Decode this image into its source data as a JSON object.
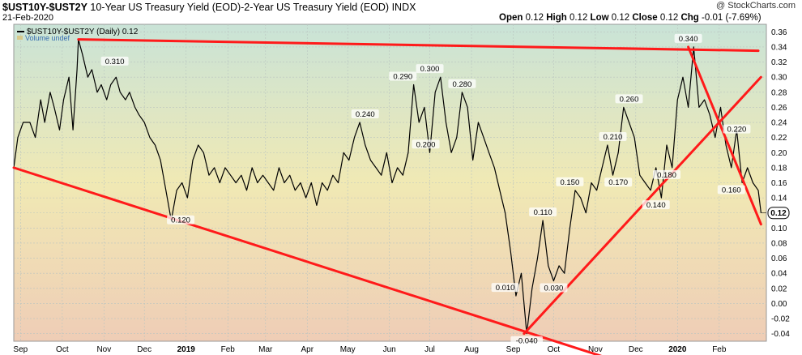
{
  "header": {
    "symbol": "$UST10Y-$UST2Y",
    "description": "10-Year US Treasury Yield (EOD)-2-Year US Treasury Yield (EOD)",
    "exchange": "INDX",
    "date": "21-Feb-2020",
    "ohlc": {
      "open_label": "Open",
      "open": "0.12",
      "high_label": "High",
      "high": "0.12",
      "low_label": "Low",
      "low": "0.12",
      "close_label": "Close",
      "close": "0.12",
      "chg_label": "Chg",
      "chg": "-0.01 (-7.69%)"
    },
    "brand": "@ StockCharts.com"
  },
  "legend": {
    "series_label": "$UST10Y-$UST2Y (Daily) 0.12",
    "volume_label": "Volume undef"
  },
  "colors": {
    "plot_top": "#c9e3d7",
    "plot_bottom": "#efcdb6",
    "plot_mid": "#f0e9b4",
    "price_line": "#000000",
    "trendline": "#ff1a1a",
    "last_value_badge": "#ffffff"
  },
  "chart_data": {
    "type": "line",
    "series": [
      {
        "name": "$UST10Y-$UST2Y",
        "x": [
          "2018-08-15",
          "2018-08-18",
          "2018-08-22",
          "2018-08-27",
          "2018-08-31",
          "2018-09-04",
          "2018-09-07",
          "2018-09-11",
          "2018-09-14",
          "2018-09-18",
          "2018-09-21",
          "2018-09-25",
          "2018-09-28",
          "2018-10-01",
          "2018-10-02",
          "2018-10-05",
          "2018-10-09",
          "2018-10-12",
          "2018-10-16",
          "2018-10-19",
          "2018-10-23",
          "2018-10-26",
          "2018-10-30",
          "2018-11-02",
          "2018-11-06",
          "2018-11-09",
          "2018-11-13",
          "2018-11-16",
          "2018-11-20",
          "2018-11-24",
          "2018-11-28",
          "2018-12-02",
          "2018-12-06",
          "2018-12-10",
          "2018-12-14",
          "2018-12-18",
          "2018-12-22",
          "2018-12-26",
          "2018-12-30",
          "2019-01-03",
          "2019-01-07",
          "2019-01-11",
          "2019-01-15",
          "2019-01-19",
          "2019-01-23",
          "2019-01-27",
          "2019-01-31",
          "2019-02-04",
          "2019-02-08",
          "2019-02-12",
          "2019-02-16",
          "2019-02-20",
          "2019-02-24",
          "2019-02-28",
          "2019-03-04",
          "2019-03-08",
          "2019-03-12",
          "2019-03-16",
          "2019-03-20",
          "2019-03-24",
          "2019-03-28",
          "2019-04-01",
          "2019-04-05",
          "2019-04-09",
          "2019-04-13",
          "2019-04-17",
          "2019-04-21",
          "2019-04-25",
          "2019-04-29",
          "2019-05-03",
          "2019-05-07",
          "2019-05-11",
          "2019-05-15",
          "2019-05-19",
          "2019-05-23",
          "2019-05-27",
          "2019-05-31",
          "2019-06-04",
          "2019-06-08",
          "2019-06-12",
          "2019-06-16",
          "2019-06-20",
          "2019-06-24",
          "2019-06-28",
          "2019-07-02",
          "2019-07-06",
          "2019-07-10",
          "2019-07-14",
          "2019-07-18",
          "2019-07-22",
          "2019-07-26",
          "2019-07-30",
          "2019-08-03",
          "2019-08-07",
          "2019-08-11",
          "2019-08-15",
          "2019-08-19",
          "2019-08-23",
          "2019-08-27",
          "2019-08-31",
          "2019-09-04",
          "2019-09-08",
          "2019-09-12",
          "2019-09-16",
          "2019-09-20",
          "2019-09-24",
          "2019-09-28",
          "2019-10-02",
          "2019-10-06",
          "2019-10-10",
          "2019-10-14",
          "2019-10-18",
          "2019-10-22",
          "2019-10-26",
          "2019-10-30",
          "2019-11-03",
          "2019-11-07",
          "2019-11-11",
          "2019-11-15",
          "2019-11-19",
          "2019-11-23",
          "2019-11-27",
          "2019-12-01",
          "2019-12-05",
          "2019-12-09",
          "2019-12-13",
          "2019-12-17",
          "2019-12-21",
          "2019-12-25",
          "2019-12-29",
          "2020-01-02",
          "2020-01-06",
          "2020-01-10",
          "2020-01-14",
          "2020-01-18",
          "2020-01-22",
          "2020-01-26",
          "2020-01-30",
          "2020-02-03",
          "2020-02-07",
          "2020-02-11",
          "2020-02-15",
          "2020-02-19",
          "2020-02-21"
        ],
        "values": [
          0.18,
          0.22,
          0.24,
          0.24,
          0.22,
          0.27,
          0.24,
          0.28,
          0.26,
          0.23,
          0.27,
          0.3,
          0.23,
          0.31,
          0.35,
          0.33,
          0.3,
          0.31,
          0.28,
          0.29,
          0.27,
          0.29,
          0.3,
          0.28,
          0.27,
          0.28,
          0.26,
          0.25,
          0.24,
          0.22,
          0.21,
          0.19,
          0.15,
          0.11,
          0.15,
          0.16,
          0.14,
          0.19,
          0.21,
          0.2,
          0.17,
          0.18,
          0.16,
          0.18,
          0.17,
          0.16,
          0.17,
          0.15,
          0.18,
          0.16,
          0.17,
          0.16,
          0.15,
          0.18,
          0.16,
          0.17,
          0.15,
          0.16,
          0.14,
          0.16,
          0.13,
          0.16,
          0.15,
          0.17,
          0.16,
          0.2,
          0.19,
          0.22,
          0.24,
          0.21,
          0.19,
          0.18,
          0.17,
          0.2,
          0.16,
          0.18,
          0.17,
          0.2,
          0.29,
          0.24,
          0.26,
          0.2,
          0.28,
          0.3,
          0.24,
          0.2,
          0.22,
          0.28,
          0.26,
          0.19,
          0.24,
          0.22,
          0.2,
          0.18,
          0.15,
          0.12,
          0.07,
          0.01,
          0.04,
          -0.04,
          0.02,
          0.06,
          0.11,
          0.05,
          0.03,
          0.05,
          0.04,
          0.1,
          0.15,
          0.14,
          0.12,
          0.16,
          0.15,
          0.18,
          0.21,
          0.17,
          0.2,
          0.26,
          0.24,
          0.22,
          0.17,
          0.16,
          0.15,
          0.18,
          0.14,
          0.21,
          0.18,
          0.27,
          0.3,
          0.26,
          0.34,
          0.26,
          0.27,
          0.25,
          0.22,
          0.26,
          0.21,
          0.18,
          0.23,
          0.16,
          0.18,
          0.16,
          0.15,
          0.12
        ],
        "color": "#000000"
      }
    ],
    "annotations": [
      {
        "x": "2018-10-29",
        "y": 0.31,
        "label": "0.310"
      },
      {
        "x": "2018-12-17",
        "y": 0.12,
        "label": "0.120"
      },
      {
        "x": "2019-05-03",
        "y": 0.24,
        "label": "0.240"
      },
      {
        "x": "2019-05-31",
        "y": 0.29,
        "label": "0.290"
      },
      {
        "x": "2019-06-20",
        "y": 0.3,
        "label": "0.300"
      },
      {
        "x": "2019-06-17",
        "y": 0.2,
        "label": "0.200"
      },
      {
        "x": "2019-07-14",
        "y": 0.28,
        "label": "0.280"
      },
      {
        "x": "2019-08-15",
        "y": 0.01,
        "label": "0.010"
      },
      {
        "x": "2019-08-31",
        "y": -0.04,
        "label": "-0.040"
      },
      {
        "x": "2019-09-12",
        "y": 0.11,
        "label": "0.110"
      },
      {
        "x": "2019-09-20",
        "y": 0.03,
        "label": "0.030"
      },
      {
        "x": "2019-10-02",
        "y": 0.15,
        "label": "0.150"
      },
      {
        "x": "2019-11-03",
        "y": 0.21,
        "label": "0.210"
      },
      {
        "x": "2019-11-07",
        "y": 0.17,
        "label": "0.170"
      },
      {
        "x": "2019-11-15",
        "y": 0.26,
        "label": "0.260"
      },
      {
        "x": "2019-12-05",
        "y": 0.14,
        "label": "0.140"
      },
      {
        "x": "2019-12-13",
        "y": 0.18,
        "label": "0.180"
      },
      {
        "x": "2019-12-29",
        "y": 0.34,
        "label": "0.340"
      },
      {
        "x": "2020-02-03",
        "y": 0.22,
        "label": "0.220"
      },
      {
        "x": "2020-01-30",
        "y": 0.16,
        "label": "0.160"
      }
    ],
    "trendlines": [
      {
        "from": {
          "x": "2018-08-15",
          "y": 0.18
        },
        "to": {
          "x": "2019-10-26",
          "y": -0.07
        }
      },
      {
        "from": {
          "x": "2018-10-02",
          "y": 0.35
        },
        "to": {
          "x": "2020-02-19",
          "y": 0.335
        }
      },
      {
        "from": {
          "x": "2019-08-29",
          "y": -0.04
        },
        "to": {
          "x": "2020-02-21",
          "y": 0.3
        }
      },
      {
        "from": {
          "x": "2019-12-29",
          "y": 0.34
        },
        "to": {
          "x": "2020-02-21",
          "y": 0.105
        }
      }
    ],
    "last_value": "0.12",
    "y_ticks": [
      "0.36",
      "0.34",
      "0.32",
      "0.30",
      "0.28",
      "0.26",
      "0.24",
      "0.22",
      "0.20",
      "0.18",
      "0.16",
      "0.14",
      "0.12",
      "0.10",
      "0.08",
      "0.06",
      "0.04",
      "0.02",
      "0.00",
      "-0.02",
      "-0.04"
    ],
    "x_ticks": [
      {
        "x": "2018-08-20",
        "label": "Sep",
        "bold": false
      },
      {
        "x": "2018-09-20",
        "label": "Oct",
        "bold": false
      },
      {
        "x": "2018-10-21",
        "label": "Nov",
        "bold": false
      },
      {
        "x": "2018-11-20",
        "label": "Dec",
        "bold": false
      },
      {
        "x": "2018-12-21",
        "label": "2019",
        "bold": true
      },
      {
        "x": "2019-01-21",
        "label": "Feb",
        "bold": false
      },
      {
        "x": "2019-02-18",
        "label": "Mar",
        "bold": false
      },
      {
        "x": "2019-03-21",
        "label": "Apr",
        "bold": false
      },
      {
        "x": "2019-04-20",
        "label": "May",
        "bold": false
      },
      {
        "x": "2019-05-21",
        "label": "Jun",
        "bold": false
      },
      {
        "x": "2019-06-20",
        "label": "Jul",
        "bold": false
      },
      {
        "x": "2019-07-21",
        "label": "Aug",
        "bold": false
      },
      {
        "x": "2019-08-21",
        "label": "Sep",
        "bold": false
      },
      {
        "x": "2019-09-20",
        "label": "Oct",
        "bold": false
      },
      {
        "x": "2019-10-21",
        "label": "Nov",
        "bold": false
      },
      {
        "x": "2019-11-20",
        "label": "Dec",
        "bold": false
      },
      {
        "x": "2019-12-21",
        "label": "2020",
        "bold": true
      },
      {
        "x": "2020-01-21",
        "label": "Feb",
        "bold": false
      }
    ],
    "ylim": [
      -0.05,
      0.37
    ],
    "xlim": [
      "2018-08-15",
      "2020-02-25"
    ],
    "grid": true,
    "legend": "top-left",
    "title": "",
    "xlabel": "",
    "ylabel": ""
  }
}
